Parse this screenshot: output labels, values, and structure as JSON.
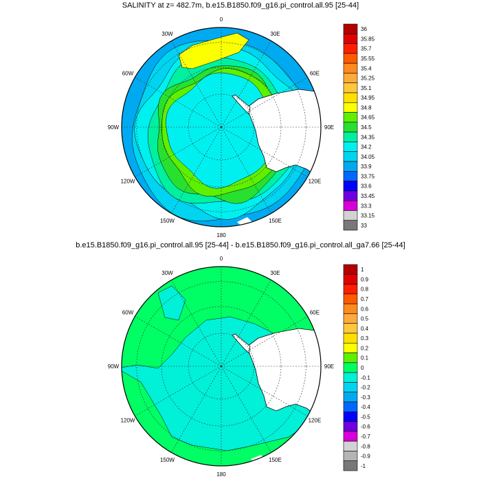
{
  "panels": [
    {
      "title": "SALINITY at z= 482.7m, b.e15.B1850.f09_g16.pi_control.all.95 [25-44]",
      "lon_labels": [
        "0",
        "30E",
        "60E",
        "90E",
        "120E",
        "150E",
        "180",
        "150W",
        "120W",
        "90W",
        "60W",
        "30W"
      ],
      "colorbar": {
        "labels": [
          "36",
          "35.85",
          "35.7",
          "35.55",
          "35.4",
          "35.25",
          "35.1",
          "34.95",
          "34.8",
          "34.65",
          "34.5",
          "34.35",
          "34.2",
          "34.05",
          "33.9",
          "33.75",
          "33.6",
          "33.45",
          "33.3",
          "33.15",
          "33"
        ],
        "colors": [
          "#b40000",
          "#e00000",
          "#ff1e00",
          "#ff5a00",
          "#ff8a1e",
          "#ffaa3c",
          "#ffc83c",
          "#ffe000",
          "#fbff00",
          "#5ff000",
          "#28e030",
          "#00f0a0",
          "#00f0f0",
          "#00d4f0",
          "#00aaf0",
          "#0068ff",
          "#0000ff",
          "#7000e0",
          "#d800d8",
          "#d2d2d2",
          "#787878"
        ]
      }
    },
    {
      "title": "b.e15.B1850.f09_g16.pi_control.all.95 [25-44] - b.e15.B1850.f09_g16.pi_control.all_ga7.66 [25-44]",
      "lon_labels": [
        "0",
        "30E",
        "60E",
        "90E",
        "120E",
        "150E",
        "180",
        "150W",
        "120W",
        "90W",
        "60W",
        "30W"
      ],
      "colorbar": {
        "labels": [
          "1",
          "0.9",
          "0.8",
          "0.7",
          "0.6",
          "0.5",
          "0.4",
          "0.3",
          "0.2",
          "0.1",
          "0",
          "-0.1",
          "-0.2",
          "-0.3",
          "-0.4",
          "-0.5",
          "-0.6",
          "-0.7",
          "-0.8",
          "-0.9",
          "-1"
        ],
        "colors": [
          "#b40000",
          "#e00000",
          "#ff1e00",
          "#ff5a00",
          "#ff8a1e",
          "#ffaa3c",
          "#ffc83c",
          "#ffe000",
          "#fbff00",
          "#5ff000",
          "#00ff64",
          "#00f0d8",
          "#00d4f0",
          "#00aaf0",
          "#0068ff",
          "#0000ff",
          "#7000e0",
          "#d800d8",
          "#d2d2d2",
          "#b4b4b4",
          "#787878"
        ]
      }
    }
  ]
}
